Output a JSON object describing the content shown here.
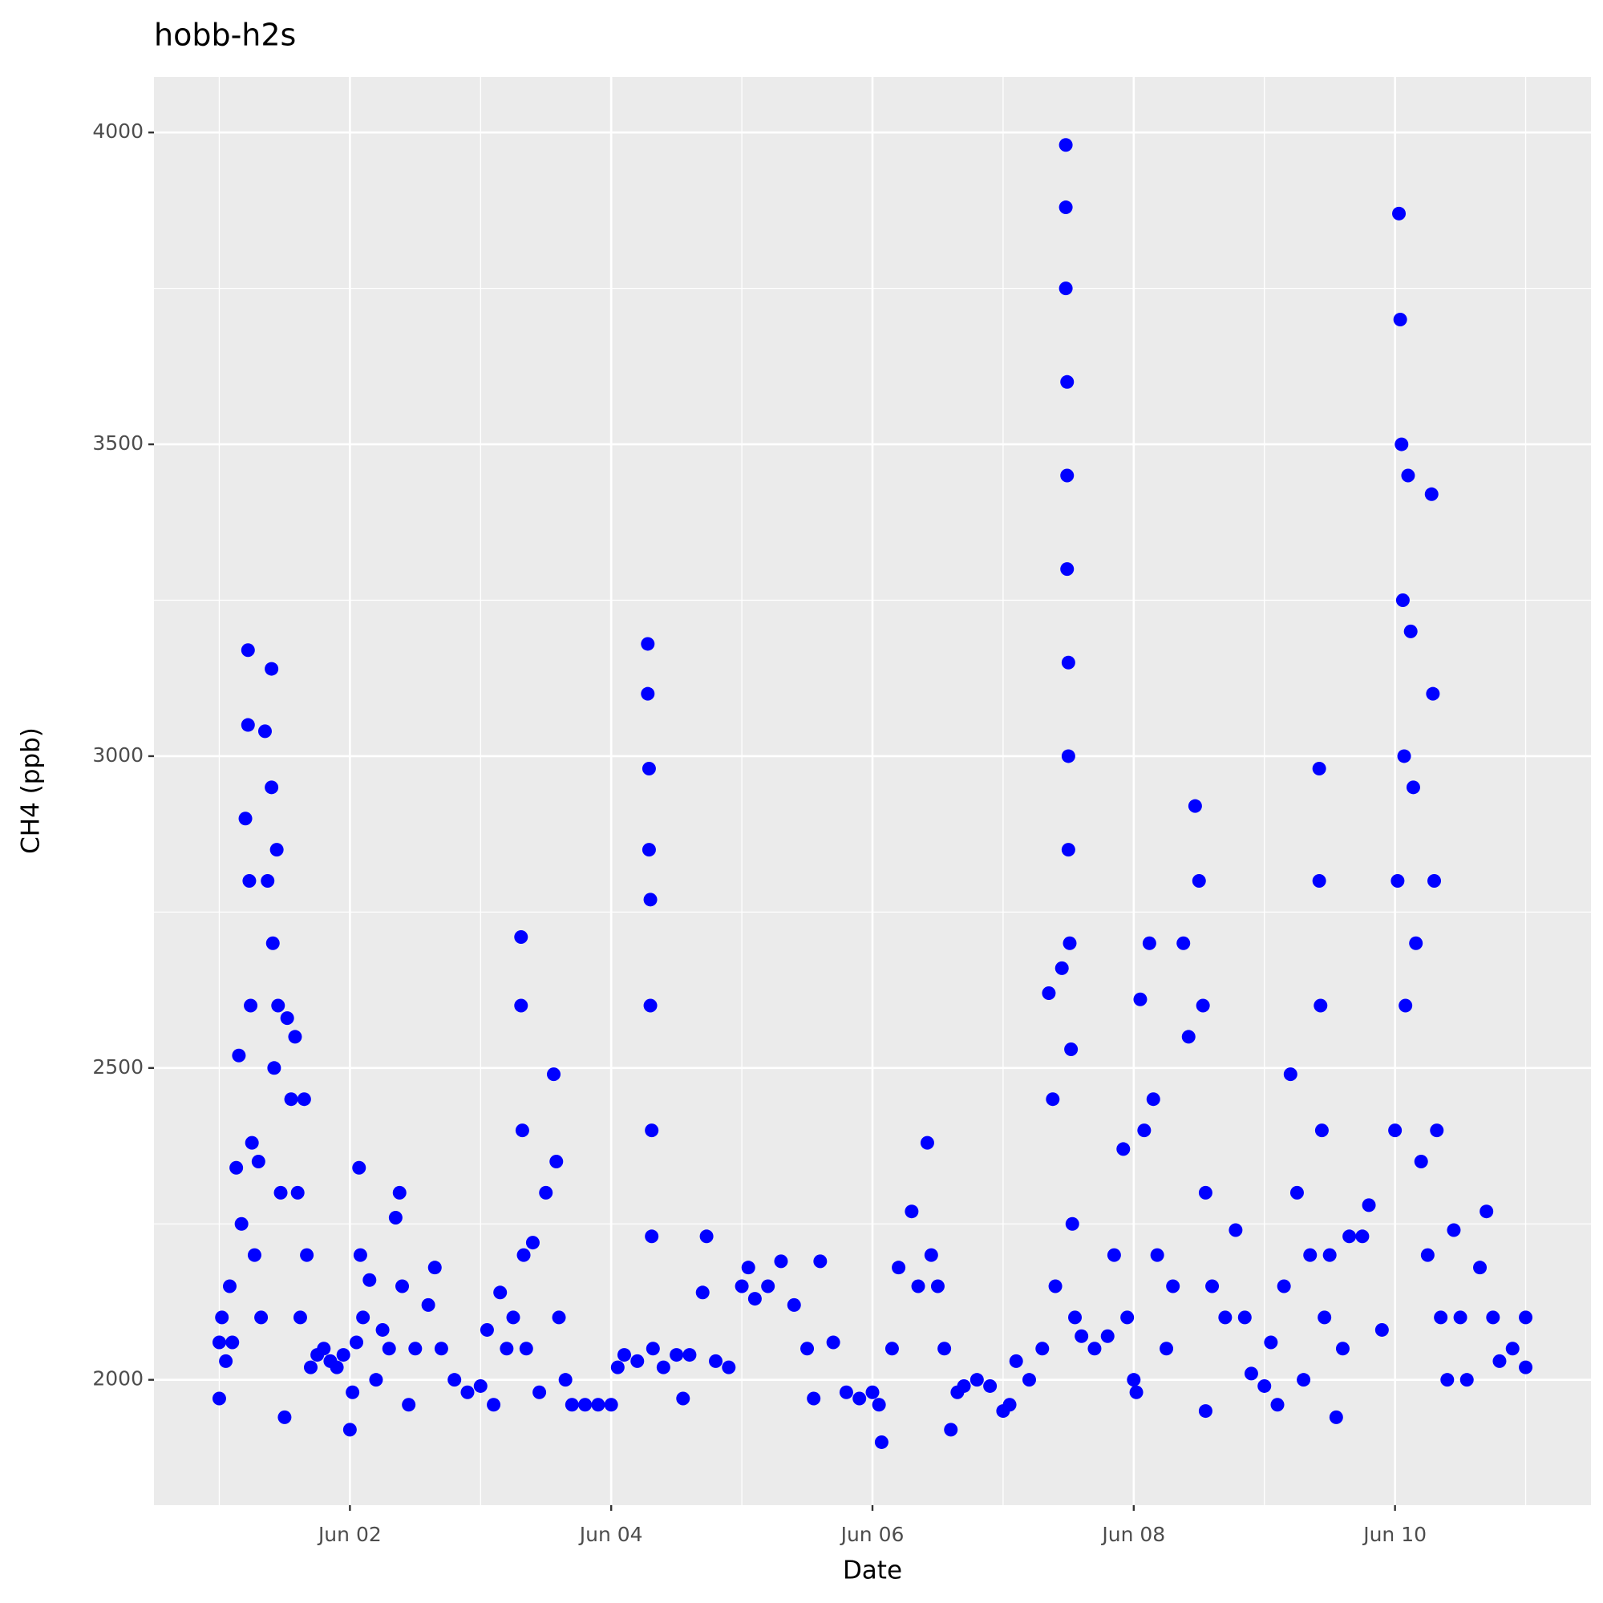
{
  "chart_data": {
    "type": "scatter",
    "title": "hobb-h2s",
    "x_label": "Date",
    "y_label": "CH4 (ppb)",
    "xlim": [
      0.5,
      11.5
    ],
    "ylim": [
      1799,
      4089
    ],
    "xticks": [
      {
        "value": 2,
        "label": "Jun 02"
      },
      {
        "value": 4,
        "label": "Jun 04"
      },
      {
        "value": 6,
        "label": "Jun 06"
      },
      {
        "value": 8,
        "label": "Jun 08"
      },
      {
        "value": 10,
        "label": "Jun 10"
      }
    ],
    "yticks": [
      2000,
      2500,
      3000,
      3500,
      4000
    ],
    "x_minor_grid": [
      1,
      3,
      5,
      7,
      9,
      11
    ],
    "y_minor_grid": [
      2250,
      2750,
      3250,
      3750
    ],
    "grid": true,
    "panel_color": "#ebebeb",
    "series": [
      {
        "color": "#0000ff",
        "x": [
          1.0,
          1.0,
          1.02,
          1.05,
          1.08,
          1.1,
          1.13,
          1.15,
          1.17,
          1.2,
          1.22,
          1.22,
          1.23,
          1.24,
          1.25,
          1.27,
          1.3,
          1.32,
          1.35,
          1.37,
          1.4,
          1.4,
          1.41,
          1.42,
          1.44,
          1.45,
          1.47,
          1.5,
          1.52,
          1.55,
          1.58,
          1.6,
          1.62,
          1.65,
          1.67,
          1.7,
          1.75,
          1.8,
          1.85,
          1.9,
          1.95,
          2.0,
          2.02,
          2.05,
          2.07,
          2.08,
          2.1,
          2.15,
          2.2,
          2.25,
          2.3,
          2.35,
          2.38,
          2.4,
          2.45,
          2.5,
          2.6,
          2.65,
          2.7,
          2.8,
          2.9,
          3.0,
          3.05,
          3.1,
          3.15,
          3.2,
          3.25,
          3.31,
          3.31,
          3.32,
          3.33,
          3.35,
          3.4,
          3.45,
          3.5,
          3.56,
          3.58,
          3.6,
          3.65,
          3.7,
          3.8,
          3.9,
          4.0,
          4.05,
          4.1,
          4.2,
          4.28,
          4.28,
          4.29,
          4.29,
          4.3,
          4.3,
          4.31,
          4.31,
          4.32,
          4.4,
          4.5,
          4.55,
          4.6,
          4.7,
          4.73,
          4.8,
          4.9,
          5.0,
          5.05,
          5.1,
          5.2,
          5.3,
          5.4,
          5.5,
          5.55,
          5.6,
          5.7,
          5.8,
          5.9,
          6.0,
          6.05,
          6.07,
          6.15,
          6.2,
          6.3,
          6.35,
          6.42,
          6.45,
          6.5,
          6.55,
          6.6,
          6.65,
          6.7,
          6.8,
          6.9,
          7.0,
          7.05,
          7.1,
          7.2,
          7.3,
          7.35,
          7.38,
          7.4,
          7.45,
          7.48,
          7.48,
          7.48,
          7.49,
          7.49,
          7.49,
          7.5,
          7.5,
          7.5,
          7.51,
          7.52,
          7.53,
          7.55,
          7.6,
          7.7,
          7.8,
          7.85,
          7.92,
          7.95,
          8.0,
          8.02,
          8.05,
          8.08,
          8.12,
          8.15,
          8.18,
          8.25,
          8.3,
          8.38,
          8.42,
          8.47,
          8.5,
          8.53,
          8.55,
          8.55,
          8.6,
          8.7,
          8.78,
          8.85,
          8.9,
          9.0,
          9.05,
          9.1,
          9.15,
          9.2,
          9.25,
          9.3,
          9.35,
          9.42,
          9.42,
          9.43,
          9.44,
          9.46,
          9.5,
          9.55,
          9.6,
          9.65,
          9.75,
          9.8,
          9.9,
          10.0,
          10.02,
          10.03,
          10.04,
          10.05,
          10.06,
          10.07,
          10.08,
          10.1,
          10.12,
          10.14,
          10.16,
          10.2,
          10.25,
          10.28,
          10.29,
          10.3,
          10.32,
          10.35,
          10.4,
          10.45,
          10.5,
          10.55,
          10.65,
          10.7,
          10.75,
          10.8,
          10.9,
          11.0,
          11.0
        ],
        "values": [
          2060,
          1970,
          2100,
          2030,
          2150,
          2060,
          2340,
          2520,
          2250,
          2900,
          3170,
          3050,
          2800,
          2600,
          2380,
          2200,
          2350,
          2100,
          3040,
          2800,
          3140,
          2950,
          2700,
          2500,
          2850,
          2600,
          2300,
          1940,
          2580,
          2450,
          2550,
          2300,
          2100,
          2450,
          2200,
          2020,
          2040,
          2050,
          2030,
          2020,
          2040,
          1920,
          1980,
          2060,
          2340,
          2200,
          2100,
          2160,
          2000,
          2080,
          2050,
          2260,
          2300,
          2150,
          1960,
          2050,
          2120,
          2180,
          2050,
          2000,
          1980,
          1990,
          2080,
          1960,
          2140,
          2050,
          2100,
          2710,
          2600,
          2400,
          2200,
          2050,
          2220,
          1980,
          2300,
          2490,
          2350,
          2100,
          2000,
          1960,
          1960,
          1960,
          1960,
          2020,
          2040,
          2030,
          3180,
          3100,
          2980,
          2850,
          2770,
          2600,
          2400,
          2230,
          2050,
          2020,
          2040,
          1970,
          2040,
          2140,
          2230,
          2030,
          2020,
          2150,
          2180,
          2130,
          2150,
          2190,
          2120,
          2050,
          1970,
          2190,
          2060,
          1980,
          1970,
          1980,
          1960,
          1900,
          2050,
          2180,
          2270,
          2150,
          2380,
          2200,
          2150,
          2050,
          1920,
          1980,
          1990,
          2000,
          1990,
          1950,
          1960,
          2030,
          2000,
          2050,
          2620,
          2450,
          2150,
          2660,
          3980,
          3880,
          3750,
          3600,
          3450,
          3300,
          3150,
          3000,
          2850,
          2700,
          2530,
          2250,
          2100,
          2070,
          2050,
          2070,
          2200,
          2370,
          2100,
          2000,
          1980,
          2610,
          2400,
          2700,
          2450,
          2200,
          2050,
          2150,
          2700,
          2550,
          2920,
          2800,
          2600,
          2300,
          1950,
          2150,
          2100,
          2240,
          2100,
          2010,
          1990,
          2060,
          1960,
          2150,
          2490,
          2300,
          2000,
          2200,
          2980,
          2800,
          2600,
          2400,
          2100,
          2200,
          1940,
          2050,
          2230,
          2230,
          2280,
          2080,
          2400,
          2800,
          3870,
          3700,
          3500,
          3250,
          3000,
          2600,
          3450,
          3200,
          2950,
          2700,
          2350,
          2200,
          3420,
          3100,
          2800,
          2400,
          2100,
          2000,
          2240,
          2100,
          2000,
          2180,
          2270,
          2100,
          2030,
          2050,
          2100,
          2020
        ]
      }
    ]
  }
}
